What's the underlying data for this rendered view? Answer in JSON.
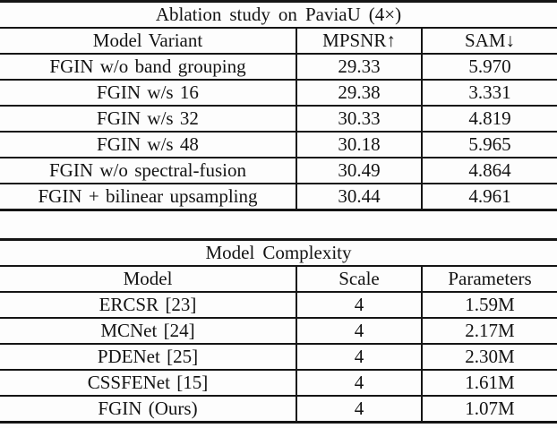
{
  "ink_color": "#151515",
  "background_color": "#fdfdfd",
  "tables": [
    {
      "title": "Ablation study on PaviaU (4×)",
      "columns": [
        "Model Variant",
        "MPSNR↑",
        "SAM↓"
      ],
      "rows": [
        [
          "FGIN w/o band grouping",
          "29.33",
          "5.970"
        ],
        [
          "FGIN w/s 16",
          "29.38",
          "3.331"
        ],
        [
          "FGIN w/s 32",
          "30.33",
          "4.819"
        ],
        [
          "FGIN w/s 48",
          "30.18",
          "5.965"
        ],
        [
          "FGIN w/o spectral-fusion",
          "30.49",
          "4.864"
        ],
        [
          "FGIN + bilinear upsampling",
          "30.44",
          "4.961"
        ]
      ],
      "bold_cells": []
    },
    {
      "title": "Model Complexity",
      "columns": [
        "Model",
        "Scale",
        "Parameters"
      ],
      "rows": [
        [
          "ERCSR [23]",
          "4",
          "1.59M"
        ],
        [
          "MCNet [24]",
          "4",
          "2.17M"
        ],
        [
          "PDENet [25]",
          "4",
          "2.30M"
        ],
        [
          "CSSFENet [15]",
          "4",
          "1.61M"
        ],
        [
          "FGIN (Ours)",
          "4",
          "1.07M"
        ]
      ],
      "bold_cells": [
        [
          4,
          2
        ]
      ]
    }
  ]
}
